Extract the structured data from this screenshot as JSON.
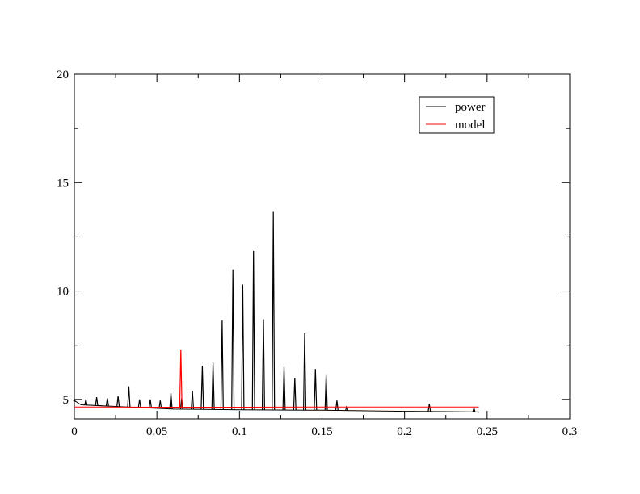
{
  "chart_data": {
    "type": "line",
    "title": "",
    "xlabel": "",
    "ylabel": "",
    "xlim": [
      0,
      0.3
    ],
    "ylim": [
      4.1,
      20
    ],
    "x_ticks": [
      0,
      0.05,
      0.1,
      0.15,
      0.2,
      0.25,
      0.3
    ],
    "x_tick_labels": [
      "0",
      "0.05",
      "0.1",
      "0.15",
      "0.2",
      "0.25",
      "0.3"
    ],
    "y_ticks": [
      5,
      10,
      15,
      20
    ],
    "y_tick_labels": [
      "5",
      "10",
      "15",
      "20"
    ],
    "grid": false,
    "legend_position": "top-right",
    "series": [
      {
        "name": "power",
        "color": "#000000",
        "baseline": [
          [
            0.0,
            4.95
          ],
          [
            0.004,
            4.75
          ],
          [
            0.06,
            4.55
          ],
          [
            0.1,
            4.52
          ],
          [
            0.15,
            4.5
          ],
          [
            0.2,
            4.45
          ],
          [
            0.244,
            4.42
          ],
          [
            0.245,
            4.4
          ]
        ],
        "peaks": [
          [
            0.0,
            4.95
          ],
          [
            0.007,
            5.0
          ],
          [
            0.0135,
            5.1
          ],
          [
            0.02,
            5.05
          ],
          [
            0.0265,
            5.15
          ],
          [
            0.033,
            5.6
          ],
          [
            0.0395,
            5.0
          ],
          [
            0.046,
            5.0
          ],
          [
            0.052,
            4.95
          ],
          [
            0.0585,
            5.3
          ],
          [
            0.065,
            5.05
          ],
          [
            0.0715,
            5.4
          ],
          [
            0.0775,
            6.55
          ],
          [
            0.084,
            6.7
          ],
          [
            0.0895,
            8.65
          ],
          [
            0.096,
            11.0
          ],
          [
            0.102,
            10.3
          ],
          [
            0.1085,
            11.85
          ],
          [
            0.1145,
            8.7
          ],
          [
            0.1205,
            13.65
          ],
          [
            0.127,
            6.5
          ],
          [
            0.1335,
            6.0
          ],
          [
            0.1395,
            8.05
          ],
          [
            0.146,
            6.4
          ],
          [
            0.1525,
            6.15
          ],
          [
            0.159,
            4.95
          ],
          [
            0.165,
            4.7
          ],
          [
            0.215,
            4.8
          ],
          [
            0.242,
            4.6
          ]
        ]
      },
      {
        "name": "model",
        "color": "#ff0000",
        "baseline": [
          [
            0.0,
            4.65
          ],
          [
            0.05,
            4.64
          ],
          [
            0.1,
            4.64
          ],
          [
            0.15,
            4.65
          ],
          [
            0.245,
            4.65
          ]
        ],
        "peaks": [
          [
            0.0645,
            7.3
          ]
        ]
      }
    ]
  }
}
